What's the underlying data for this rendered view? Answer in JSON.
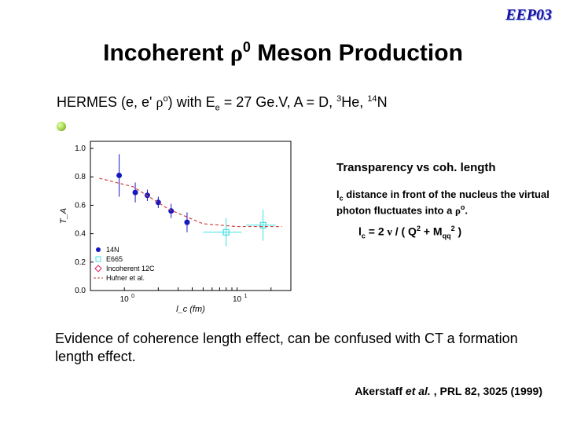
{
  "logo": "EEP03",
  "title": {
    "pre": "Incoherent  ",
    "sym": "ρ",
    "sup": "0",
    "post": " Meson Production"
  },
  "hermes": {
    "a": "HERMES (e, e' ",
    "rho": "ρ",
    "rhosup": "o",
    "b": ") with  E",
    "esub": "e",
    "c": " =  27 Ge.V, A = D, ",
    "he_sup": "3",
    "he": "He, ",
    "n_sup": "14",
    "n": "N"
  },
  "side": {
    "block1": "Transparency vs coh. length",
    "b2a": "l",
    "b2asub": "c",
    "b2b": " distance in front of the nucleus the virtual photon fluctuates into a ",
    "b2rho": "ρ",
    "b2rhosup": "o",
    "b2end": ".",
    "f_lc": "l",
    "f_lcsub": "c",
    "f_eq": " = 2 ",
    "f_nu": "ν",
    "f_div": " / ( Q",
    "f_q2": "2",
    "f_plus": "  + M",
    "f_qq": "qq",
    "f_m2": "2",
    "f_close": "  )"
  },
  "bottom": "Evidence of  coherence length effect, can be confused with CT a formation length effect.",
  "ref": {
    "a": "Akerstaff ",
    "it": "et al.",
    "b": " , PRL ",
    "vol": "82",
    "rest": ", 3025 (1999)"
  },
  "chart": {
    "ylabel": "T_A",
    "xlabel": "l_c (fm)",
    "yticks": [
      0.0,
      0.2,
      0.4,
      0.6,
      0.8,
      1.0
    ],
    "xticks_label": [
      "10^0",
      "10^1"
    ],
    "xlim": [
      0.5,
      30
    ],
    "ylim": [
      0.0,
      1.05
    ],
    "grid": false,
    "background": "#ffffff",
    "axis_color": "#000000",
    "series": [
      {
        "name": "14N",
        "marker": "circle_filled",
        "color": "#1818c0",
        "points": [
          {
            "x": 0.9,
            "y": 0.81,
            "ey": 0.15
          },
          {
            "x": 1.25,
            "y": 0.69,
            "ey": 0.07
          },
          {
            "x": 1.6,
            "y": 0.67,
            "ey": 0.04
          },
          {
            "x": 2.0,
            "y": 0.62,
            "ey": 0.04
          },
          {
            "x": 2.6,
            "y": 0.56,
            "ey": 0.05
          },
          {
            "x": 3.6,
            "y": 0.48,
            "ey": 0.07
          }
        ]
      },
      {
        "name": "E665",
        "marker": "square_open",
        "color": "#40e0e0",
        "points": [
          {
            "x": 8.0,
            "y": 0.41,
            "ex": 3.0,
            "ey": 0.1
          },
          {
            "x": 17.0,
            "y": 0.46,
            "ex": 5.0,
            "ey": 0.11
          }
        ]
      },
      {
        "name": "Incoherent 12C",
        "marker": "diamond_open",
        "color": "#e02060",
        "points": []
      },
      {
        "name": "Hufner et al.",
        "line": "dashed",
        "color": "#d04040",
        "path": [
          {
            "x": 0.6,
            "y": 0.79
          },
          {
            "x": 1.2,
            "y": 0.73
          },
          {
            "x": 2.5,
            "y": 0.57
          },
          {
            "x": 5.0,
            "y": 0.47
          },
          {
            "x": 10.0,
            "y": 0.45
          },
          {
            "x": 25.0,
            "y": 0.45
          }
        ]
      }
    ],
    "legend": {
      "items": [
        "14N",
        "E665",
        "Incoherent 12C",
        "Hufner et al."
      ],
      "colors": [
        "#1818c0",
        "#40e0e0",
        "#e02060",
        "#d04040"
      ]
    }
  }
}
